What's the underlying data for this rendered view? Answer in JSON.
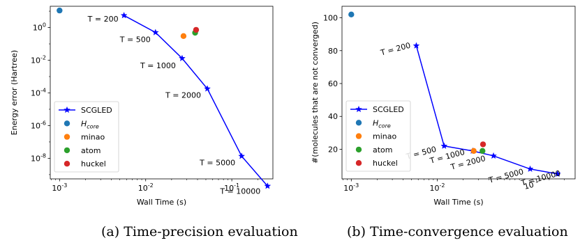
{
  "charts": [
    {
      "id": "a",
      "caption": "(a) Time-precision evaluation",
      "xlabel": "Wall Time (s)",
      "ylabel": "Energy error (Hartree)",
      "xticks": [
        {
          "exp": "-3",
          "v": 0.001
        },
        {
          "exp": "-2",
          "v": 0.01
        },
        {
          "exp": "-1",
          "v": 0.1
        }
      ],
      "yticks": [
        {
          "base": "10",
          "exp": "0",
          "v": 1
        },
        {
          "base": "10",
          "exp": "-2",
          "v": 0.01
        },
        {
          "base": "10",
          "exp": "-4",
          "v": 0.0001
        },
        {
          "base": "10",
          "exp": "-6",
          "v": 1e-06
        },
        {
          "base": "10",
          "exp": "-8",
          "v": 1e-08
        }
      ],
      "legend": [
        "SCGLED",
        "H",
        "minao",
        "atom",
        "huckel"
      ]
    },
    {
      "id": "b",
      "caption": "(b) Time-convergence evaluation",
      "xlabel": "Wall Time (s)",
      "ylabel": "#(molecules that are not converged)",
      "xticks": [
        {
          "exp": "-3",
          "v": 0.001
        },
        {
          "exp": "-2",
          "v": 0.01
        }
      ],
      "yticks": [
        {
          "label": "20",
          "v": 20
        },
        {
          "label": "40",
          "v": 40
        },
        {
          "label": "60",
          "v": 60
        },
        {
          "label": "80",
          "v": 80
        },
        {
          "label": "100",
          "v": 100
        }
      ],
      "legend": [
        "SCGLED",
        "H",
        "minao",
        "atom",
        "huckel"
      ]
    }
  ],
  "hcore_sub": "core",
  "colors": {
    "scgled": "#0000ff",
    "hcore": "#1f77b4",
    "minao": "#ff7f0e",
    "atom": "#2ca02c",
    "huckel": "#d62728"
  },
  "chart_data": [
    {
      "type": "line",
      "xscale": "log",
      "yscale": "log",
      "xlim": [
        0.00078,
        0.3
      ],
      "ylim": [
        5.5e-10,
        20
      ],
      "series": [
        {
          "name": "SCGLED",
          "x": [
            0.0056,
            0.013,
            0.0265,
            0.052,
            0.13,
            0.26
          ],
          "y": [
            5.5,
            0.5,
            0.013,
            0.00018,
            1.35e-08,
            2e-10
          ]
        },
        {
          "name": "H",
          "x": [
            0.001
          ],
          "y": [
            11
          ]
        },
        {
          "name": "minao",
          "x": [
            0.0275
          ],
          "y": [
            0.3
          ]
        },
        {
          "name": "atom",
          "x": [
            0.0375
          ],
          "y": [
            0.48
          ]
        },
        {
          "name": "huckel",
          "x": [
            0.0385
          ],
          "y": [
            0.72
          ]
        }
      ],
      "annotations": [
        {
          "text": "T = 200"
        },
        {
          "text": "T = 500"
        },
        {
          "text": "T = 1000"
        },
        {
          "text": "T = 2000"
        },
        {
          "text": "T = 5000"
        },
        {
          "text": "T = 10000"
        }
      ]
    },
    {
      "type": "line",
      "xscale": "log",
      "yscale": "linear",
      "xlim": [
        0.00078,
        0.4
      ],
      "ylim": [
        2,
        107
      ],
      "series": [
        {
          "name": "SCGLED",
          "x": [
            0.0057,
            0.012,
            0.0258,
            0.045,
            0.12,
            0.25
          ],
          "y": [
            83,
            22,
            19,
            16,
            8,
            5
          ]
        },
        {
          "name": "H",
          "x": [
            0.001
          ],
          "y": [
            102
          ]
        },
        {
          "name": "minao",
          "x": [
            0.0265
          ],
          "y": [
            19
          ]
        },
        {
          "name": "atom",
          "x": [
            0.0335
          ],
          "y": [
            19
          ]
        },
        {
          "name": "huckel",
          "x": [
            0.034
          ],
          "y": [
            23
          ]
        }
      ],
      "annotations": [
        {
          "text": "T = 200"
        },
        {
          "text": "T = 500"
        },
        {
          "text": "T = 1000"
        },
        {
          "text": "T = 2000"
        },
        {
          "text": "T = 5000"
        },
        {
          "text": "T = 10000"
        }
      ],
      "stray_tick_label": {
        "base": "10",
        "exp": "-1"
      }
    }
  ]
}
